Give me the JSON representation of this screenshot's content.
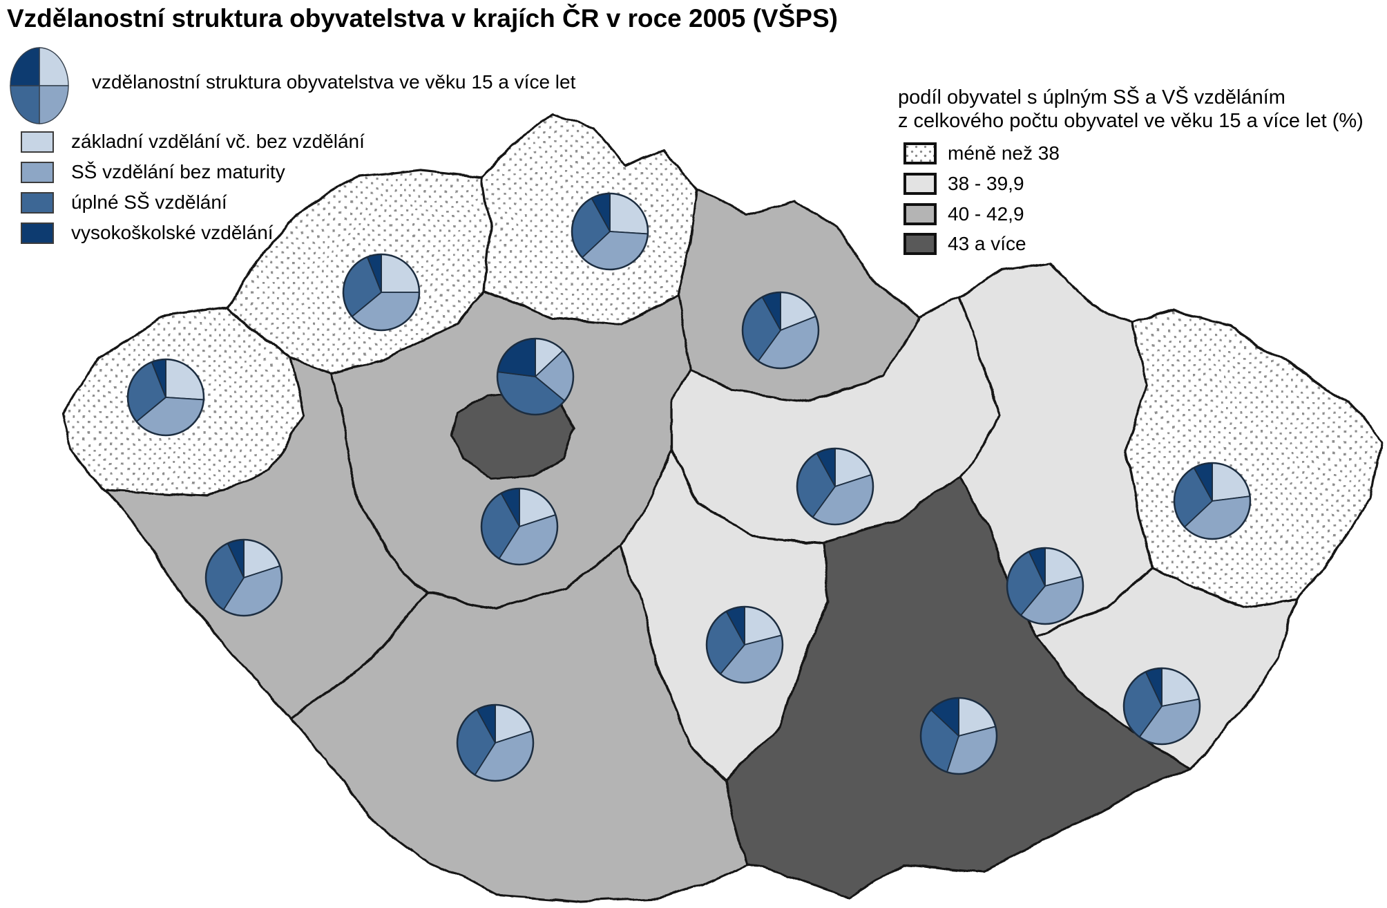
{
  "title": "Vzdělanostní struktura obyvatelstva v krajích ČR v roce 2005 (VŠPS)",
  "pie_legend": {
    "heading": "vzdělanostní struktura obyvatelstva ve věku 15 a více let",
    "items": [
      {
        "label": "základní vzdělání vč. bez vzdělání",
        "color": "#c7d5e5"
      },
      {
        "label": "SŠ vzdělání bez maturity",
        "color": "#8da6c5"
      },
      {
        "label": "úplné SŠ vzdělání",
        "color": "#3d6795"
      },
      {
        "label": "vysokoškolské vzdělání",
        "color": "#0d3b70"
      }
    ]
  },
  "choropleth_legend": {
    "heading_line1": "podíl obyvatel s úplným SŠ a VŠ vzděláním",
    "heading_line2": "z celkového počtu obyvatel ve věku 15 a více let (%)",
    "classes": [
      {
        "label": "méně než 38",
        "fill": "dotted"
      },
      {
        "label": "38 - 39,9",
        "fill": "#e3e3e3"
      },
      {
        "label": "40 - 42,9",
        "fill": "#b4b4b4"
      },
      {
        "label": "43 a více",
        "fill": "#595959"
      }
    ]
  },
  "chart_data": {
    "type": "pie",
    "subtype": "choropleth-map-with-pie-charts",
    "year": "2005",
    "series_labels": [
      "základní vzdělání vč. bez vzdělání",
      "SŠ vzdělání bez maturity",
      "úplné SŠ vzdělání",
      "vysokoškolské vzdělání"
    ],
    "value_unit": "%",
    "regions": [
      {
        "id": "karlovarsky",
        "name": "Karlovarský kraj",
        "class": "méně než 38",
        "values": [
          26,
          38,
          30,
          6
        ]
      },
      {
        "id": "ustecky",
        "name": "Ústecký kraj",
        "class": "méně než 38",
        "values": [
          25,
          39,
          30,
          6
        ]
      },
      {
        "id": "liberecky",
        "name": "Liberecký kraj",
        "class": "méně než 38",
        "values": [
          26,
          37,
          29,
          8
        ]
      },
      {
        "id": "kralovehradecky",
        "name": "Královéhradecký kraj",
        "class": "40 - 42,9",
        "values": [
          19,
          41,
          32,
          8
        ]
      },
      {
        "id": "pardubicky",
        "name": "Pardubický kraj",
        "class": "38 - 39,9",
        "values": [
          20,
          40,
          32,
          8
        ]
      },
      {
        "id": "stredocesky",
        "name": "Středočeský kraj",
        "class": "40 - 42,9",
        "values": [
          20,
          39,
          33,
          8
        ]
      },
      {
        "id": "praha",
        "name": "Hlavní město Praha",
        "class": "43 a více",
        "values": [
          13,
          23,
          41,
          23
        ]
      },
      {
        "id": "plzensky",
        "name": "Plzeňský kraj",
        "class": "40 - 42,9",
        "values": [
          20,
          39,
          34,
          7
        ]
      },
      {
        "id": "jihocesky",
        "name": "Jihočeský kraj",
        "class": "40 - 42,9",
        "values": [
          20,
          39,
          33,
          8
        ]
      },
      {
        "id": "vysocina",
        "name": "Kraj Vysočina",
        "class": "38 - 39,9",
        "values": [
          21,
          40,
          31,
          8
        ]
      },
      {
        "id": "jihomoravsky",
        "name": "Jihomoravský kraj",
        "class": "43 a více",
        "values": [
          21,
          34,
          32,
          13
        ]
      },
      {
        "id": "olomoucky",
        "name": "Olomoucký kraj",
        "class": "38 - 39,9",
        "values": [
          21,
          40,
          32,
          7
        ]
      },
      {
        "id": "zlinsky",
        "name": "Zlínský kraj",
        "class": "38 - 39,9",
        "values": [
          22,
          38,
          33,
          7
        ]
      },
      {
        "id": "moravskoslezsky",
        "name": "Moravskoslezský kraj",
        "class": "méně než 38",
        "values": [
          23,
          40,
          29,
          8
        ]
      }
    ]
  },
  "colors": {
    "region_border": "#161616",
    "pie_outline": "#1c2d40",
    "dot_pattern": "#8f8f8f",
    "background": "#ffffff"
  }
}
